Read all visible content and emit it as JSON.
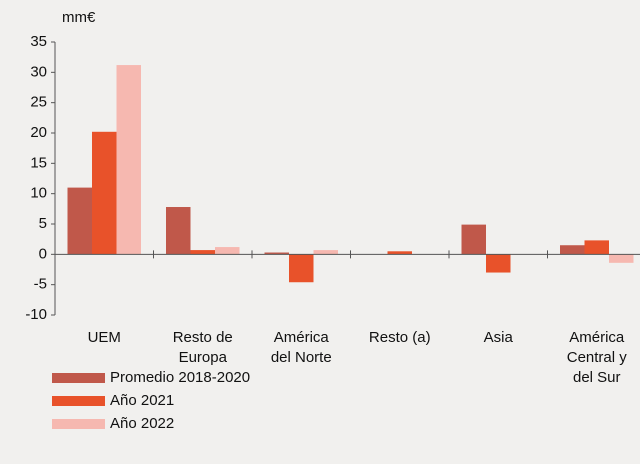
{
  "chart_data": {
    "type": "bar",
    "y_label": "mm€",
    "categories": [
      "UEM",
      "Resto de\nEuropa",
      "América\ndel Norte",
      "Resto (a)",
      "Asia",
      "América\nCentral y\ndel Sur"
    ],
    "series": [
      {
        "name": "Promedio 2018-2020",
        "color": "#c0584a",
        "values": [
          11,
          7.8,
          0.3,
          0,
          4.9,
          1.5
        ]
      },
      {
        "name": "Año 2021",
        "color": "#e8522a",
        "values": [
          20.2,
          0.7,
          -4.6,
          0.5,
          -3,
          2.3
        ]
      },
      {
        "name": "Año 2022",
        "color": "#f6b8b0",
        "values": [
          31.2,
          1.2,
          0.7,
          0,
          0,
          -1.4
        ]
      }
    ],
    "ylim": [
      -10,
      35
    ],
    "yticks": [
      -10,
      -5,
      0,
      5,
      10,
      15,
      20,
      25,
      30,
      35
    ],
    "legend": "bottom-left"
  }
}
